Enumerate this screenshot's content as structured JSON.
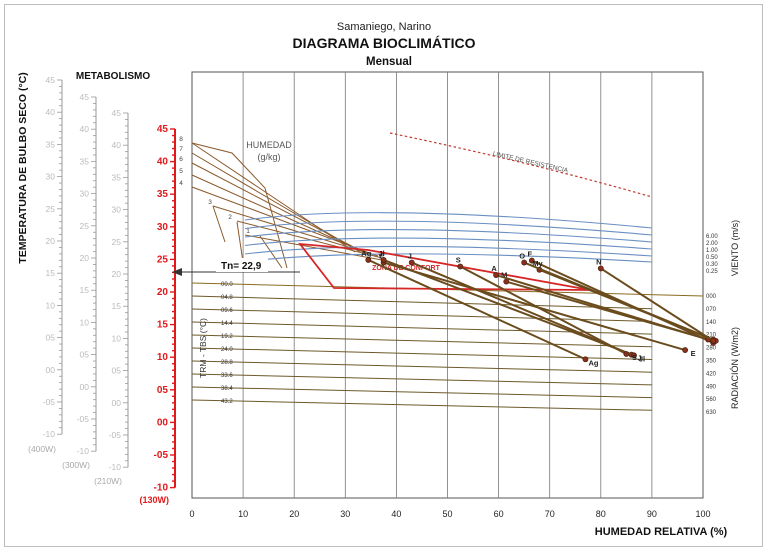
{
  "header": {
    "location": "Samaniego, Narino",
    "title": "DIAGRAMA BIOCLIMÁTICO",
    "subtitle": "Mensual"
  },
  "chart_data": {
    "type": "scatter",
    "title": "DIAGRAMA BIOCLIMÁTICO",
    "subtitle": "Mensual",
    "xlabel": "HUMEDAD RELATIVA (%)",
    "ylabel": "TEMPERATURA DE BULBO SECO (°C)",
    "xlim": [
      0,
      100
    ],
    "ylim": [
      -10,
      45
    ],
    "x_ticks": [
      "0",
      "10",
      "20",
      "30",
      "40",
      "50",
      "60",
      "70",
      "80",
      "90",
      "100"
    ],
    "y_axes": [
      {
        "label": "TEMPERATURA DE BULBO SECO (°C)",
        "ticks": [
          "45",
          "40",
          "35",
          "30",
          "25",
          "20",
          "15",
          "10",
          "05",
          "00",
          "-05",
          "-10"
        ],
        "bottom_label": "(400W)"
      },
      {
        "label": "METABOLISMO",
        "ticks": [
          "45",
          "40",
          "35",
          "30",
          "25",
          "20",
          "15",
          "10",
          "05",
          "00",
          "-05",
          "-10"
        ],
        "bottom_label": "(300W)"
      },
      {
        "label": "",
        "ticks": [
          "45",
          "40",
          "35",
          "30",
          "25",
          "20",
          "15",
          "10",
          "05",
          "00",
          "-05",
          "-10"
        ],
        "bottom_label": "(210W)"
      },
      {
        "label": "",
        "ticks": [
          "45",
          "40",
          "35",
          "30",
          "25",
          "20",
          "15",
          "10",
          "05",
          "00",
          "-05",
          "-10"
        ],
        "bottom_label": "(130W)",
        "color": "#e0191b"
      }
    ],
    "humidity": {
      "label": "HUMEDAD",
      "unit": "(g/kg)",
      "values": [
        "8",
        "7",
        "6",
        "5",
        "4",
        "3",
        "2",
        "1"
      ]
    },
    "resistance_label": "LIMITE DE RESISTENCIA",
    "comfort_label": "ZONA DE CONFORT",
    "neutral_temp_label": "Tn= 22,9",
    "neutral_temp": 22.9,
    "trm_label": "TRM - TBS (°C)",
    "trm_values": [
      "00.0",
      "04.8",
      "09.6",
      "14.4",
      "19.2",
      "24.0",
      "28.8",
      "33.6",
      "38.4",
      "43.2"
    ],
    "wind_label": "VIENTO (m/s)",
    "wind_values": [
      "6.00",
      "2.00",
      "1.00",
      "0.50",
      "0.30",
      "0.25"
    ],
    "radiation_label": "RADIACIÓN (W/m2)",
    "radiation_values": [
      "000",
      "070",
      "140",
      "210",
      "280",
      "350",
      "420",
      "490",
      "560",
      "630"
    ],
    "series": [
      {
        "label": "E",
        "points": [
          [
            37.5,
            24.4
          ],
          [
            96.5,
            11.1
          ]
        ]
      },
      {
        "label": "F",
        "points": [
          [
            66.5,
            24.7
          ],
          [
            102,
            12.2
          ]
        ]
      },
      {
        "label": "M",
        "points": [
          [
            61.5,
            21.5
          ],
          [
            102,
            12.5
          ]
        ]
      },
      {
        "label": "A",
        "points": [
          [
            59.5,
            22.5
          ],
          [
            101,
            12.7
          ]
        ]
      },
      {
        "label": "My",
        "points": [
          [
            68,
            23.3
          ],
          [
            102.5,
            12.5
          ]
        ]
      },
      {
        "label": "J",
        "points": [
          [
            43,
            24.4
          ],
          [
            86,
            10.4
          ]
        ]
      },
      {
        "label": "Jl",
        "points": [
          [
            37.5,
            24.8
          ],
          [
            86.5,
            10.3
          ]
        ]
      },
      {
        "label": "Ag",
        "points": [
          [
            34.5,
            24.8
          ],
          [
            77,
            9.7
          ]
        ]
      },
      {
        "label": "S",
        "points": [
          [
            52.5,
            23.8
          ],
          [
            85,
            10.5
          ]
        ]
      },
      {
        "label": "O",
        "points": [
          [
            65,
            24.4
          ],
          [
            102,
            12.7
          ]
        ]
      },
      {
        "label": "N",
        "points": [
          [
            80,
            23.5
          ],
          [
            102,
            12.5
          ]
        ]
      }
    ]
  }
}
